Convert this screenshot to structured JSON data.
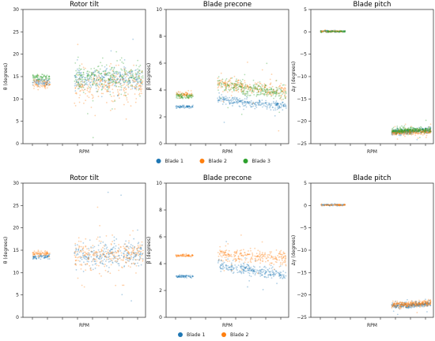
{
  "chart_data": [
    {
      "type": "scatter",
      "title": "Rotor tilt",
      "xlabel": "RPM",
      "ylabel": "θ (degrees)",
      "ylim": [
        0,
        30
      ],
      "yticks": [
        0,
        5,
        10,
        15,
        20,
        25,
        30
      ],
      "series": [
        {
          "name": "Blade 1",
          "color": "#1f77b4",
          "segments": [
            {
              "x": [
                0.08,
                0.22
              ],
              "y": [
                13.8,
                13.8
              ],
              "spread": 0.4
            },
            {
              "x": [
                0.42,
                0.98
              ],
              "y": [
                14.1,
                14.7
              ],
              "spread": 1.1
            }
          ]
        },
        {
          "name": "Blade 2",
          "color": "#ff7f0e",
          "segments": [
            {
              "x": [
                0.08,
                0.22
              ],
              "y": [
                13.3,
                13.3
              ],
              "spread": 0.6
            },
            {
              "x": [
                0.42,
                0.98
              ],
              "y": [
                12.3,
                13.3
              ],
              "spread": 1.8
            }
          ]
        },
        {
          "name": "Blade 3",
          "color": "#2ca02c",
          "segments": [
            {
              "x": [
                0.08,
                0.22
              ],
              "y": [
                14.8,
                14.8
              ],
              "spread": 0.4
            },
            {
              "x": [
                0.42,
                0.98
              ],
              "y": [
                14.6,
                15.1
              ],
              "spread": 1.6
            }
          ]
        }
      ]
    },
    {
      "type": "scatter",
      "title": "Blade precone",
      "xlabel": "RPM",
      "ylabel": "β (degrees)",
      "ylim": [
        0,
        10
      ],
      "yticks": [
        0,
        2,
        4,
        6,
        8,
        10
      ],
      "series": [
        {
          "name": "Blade 1",
          "color": "#1f77b4",
          "segments": [
            {
              "x": [
                0.08,
                0.22
              ],
              "y": [
                2.75,
                2.75
              ],
              "spread": 0.05
            },
            {
              "x": [
                0.42,
                0.98
              ],
              "y": [
                3.3,
                2.8
              ],
              "spread": 0.15
            }
          ]
        },
        {
          "name": "Blade 2",
          "color": "#ff7f0e",
          "segments": [
            {
              "x": [
                0.08,
                0.22
              ],
              "y": [
                3.65,
                3.65
              ],
              "spread": 0.1
            },
            {
              "x": [
                0.42,
                0.98
              ],
              "y": [
                4.5,
                3.8
              ],
              "spread": 0.25
            }
          ]
        },
        {
          "name": "Blade 3",
          "color": "#2ca02c",
          "segments": [
            {
              "x": [
                0.08,
                0.22
              ],
              "y": [
                3.55,
                3.55
              ],
              "spread": 0.1
            },
            {
              "x": [
                0.42,
                0.98
              ],
              "y": [
                4.4,
                3.7
              ],
              "spread": 0.25
            }
          ]
        }
      ]
    },
    {
      "type": "scatter",
      "title": "Blade pitch",
      "xlabel": "RPM",
      "ylabel": "Δγ (degrees)",
      "ylim": [
        -25,
        5
      ],
      "yticks": [
        -25,
        -20,
        -15,
        -10,
        -5,
        0,
        5
      ],
      "series": [
        {
          "name": "Blade 1",
          "color": "#1f77b4",
          "segments": [
            {
              "x": [
                0.08,
                0.28
              ],
              "y": [
                0.1,
                0.1
              ],
              "spread": 0.1
            },
            {
              "x": [
                0.66,
                0.98
              ],
              "y": [
                -22.4,
                -22.0
              ],
              "spread": 0.3
            }
          ]
        },
        {
          "name": "Blade 2",
          "color": "#ff7f0e",
          "segments": [
            {
              "x": [
                0.08,
                0.28
              ],
              "y": [
                0.1,
                0.1
              ],
              "spread": 0.1
            },
            {
              "x": [
                0.66,
                0.98
              ],
              "y": [
                -22.6,
                -22.2
              ],
              "spread": 0.3
            }
          ]
        },
        {
          "name": "Blade 3",
          "color": "#2ca02c",
          "segments": [
            {
              "x": [
                0.08,
                0.28
              ],
              "y": [
                0.1,
                0.1
              ],
              "spread": 0.1
            },
            {
              "x": [
                0.66,
                0.98
              ],
              "y": [
                -22.2,
                -21.8
              ],
              "spread": 0.3
            }
          ]
        }
      ]
    },
    {
      "type": "scatter",
      "title": "Rotor tilt",
      "xlabel": "RPM",
      "ylabel": "θ (degrees)",
      "ylim": [
        0,
        30
      ],
      "yticks": [
        0,
        5,
        10,
        15,
        20,
        25,
        30
      ],
      "series": [
        {
          "name": "Blade 1",
          "color": "#1f77b4",
          "segments": [
            {
              "x": [
                0.08,
                0.22
              ],
              "y": [
                13.5,
                13.5
              ],
              "spread": 0.3
            },
            {
              "x": [
                0.42,
                0.98
              ],
              "y": [
                13.6,
                14.3
              ],
              "spread": 1.3
            }
          ]
        },
        {
          "name": "Blade 2",
          "color": "#ff7f0e",
          "segments": [
            {
              "x": [
                0.08,
                0.22
              ],
              "y": [
                14.2,
                14.2
              ],
              "spread": 0.3
            },
            {
              "x": [
                0.42,
                0.98
              ],
              "y": [
                13.8,
                14.0
              ],
              "spread": 1.6
            }
          ]
        }
      ]
    },
    {
      "type": "scatter",
      "title": "Blade precone",
      "xlabel": "RPM",
      "ylabel": "β (degrees)",
      "ylim": [
        0,
        10
      ],
      "yticks": [
        0,
        2,
        4,
        6,
        8,
        10
      ],
      "series": [
        {
          "name": "Blade 1",
          "color": "#1f77b4",
          "segments": [
            {
              "x": [
                0.08,
                0.22
              ],
              "y": [
                3.05,
                3.05
              ],
              "spread": 0.05
            },
            {
              "x": [
                0.42,
                0.98
              ],
              "y": [
                3.9,
                3.1
              ],
              "spread": 0.2
            }
          ]
        },
        {
          "name": "Blade 2",
          "color": "#ff7f0e",
          "segments": [
            {
              "x": [
                0.08,
                0.22
              ],
              "y": [
                4.6,
                4.6
              ],
              "spread": 0.05
            },
            {
              "x": [
                0.42,
                0.98
              ],
              "y": [
                4.8,
                4.3
              ],
              "spread": 0.25
            }
          ]
        }
      ]
    },
    {
      "type": "scatter",
      "title": "Blade pitch",
      "xlabel": "RPM",
      "ylabel": "Δγ (degrees)",
      "ylim": [
        -25,
        5
      ],
      "yticks": [
        -25,
        -20,
        -15,
        -10,
        -5,
        0,
        5
      ],
      "series": [
        {
          "name": "Blade 1",
          "color": "#1f77b4",
          "segments": [
            {
              "x": [
                0.08,
                0.28
              ],
              "y": [
                0.1,
                0.1
              ],
              "spread": 0.1
            },
            {
              "x": [
                0.66,
                0.98
              ],
              "y": [
                -22.5,
                -22.0
              ],
              "spread": 0.3
            }
          ]
        },
        {
          "name": "Blade 2",
          "color": "#ff7f0e",
          "segments": [
            {
              "x": [
                0.08,
                0.28
              ],
              "y": [
                0.1,
                0.1
              ],
              "spread": 0.1
            },
            {
              "x": [
                0.66,
                0.98
              ],
              "y": [
                -22.3,
                -21.8
              ],
              "spread": 0.3
            }
          ]
        }
      ]
    }
  ],
  "legends": [
    {
      "entries": [
        {
          "label": "Blade 1",
          "color": "#1f77b4"
        },
        {
          "label": "Blade 2",
          "color": "#ff7f0e"
        },
        {
          "label": "Blade 3",
          "color": "#2ca02c"
        }
      ]
    },
    {
      "entries": [
        {
          "label": "Blade 1",
          "color": "#1f77b4"
        },
        {
          "label": "Blade 2",
          "color": "#ff7f0e"
        }
      ]
    }
  ]
}
